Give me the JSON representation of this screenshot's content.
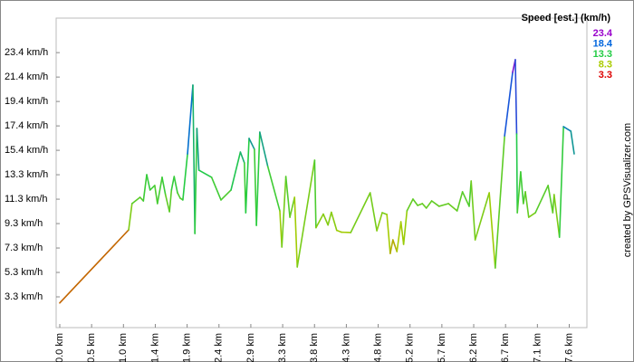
{
  "chart_data": {
    "type": "line",
    "legend_title": "Speed [est.] (km/h)",
    "legend": [
      {
        "value": 23.4,
        "color": "#9900cc"
      },
      {
        "value": 18.4,
        "color": "#0066dd"
      },
      {
        "value": 13.3,
        "color": "#22cc44"
      },
      {
        "value": 8.3,
        "color": "#aacc00"
      },
      {
        "value": 3.3,
        "color": "#dd0000"
      }
    ],
    "credit": "created by GPSVisualizer.com",
    "xlim": [
      -0.054,
      7.88
    ],
    "ylim": [
      0.77,
      26.23
    ],
    "xticks": [
      {
        "value": 0,
        "label": "0.0 km"
      },
      {
        "value": 0.476,
        "label": "0.5 km"
      },
      {
        "value": 0.952,
        "label": "1.0 km"
      },
      {
        "value": 1.428,
        "label": "1.4 km"
      },
      {
        "value": 1.904,
        "label": "1.9 km"
      },
      {
        "value": 2.38,
        "label": "2.4 km"
      },
      {
        "value": 2.856,
        "label": "2.9 km"
      },
      {
        "value": 3.332,
        "label": "3.3 km"
      },
      {
        "value": 3.808,
        "label": "3.8 km"
      },
      {
        "value": 4.284,
        "label": "4.3 km"
      },
      {
        "value": 4.76,
        "label": "4.8 km"
      },
      {
        "value": 5.236,
        "label": "5.2 km"
      },
      {
        "value": 5.712,
        "label": "5.7 km"
      },
      {
        "value": 6.188,
        "label": "6.2 km"
      },
      {
        "value": 6.664,
        "label": "6.7 km"
      },
      {
        "value": 7.14,
        "label": "7.1 km"
      },
      {
        "value": 7.616,
        "label": "7.6 km"
      }
    ],
    "yticks": [
      {
        "value": 3.3,
        "label": "3.3 km/h"
      },
      {
        "value": 5.309,
        "label": "5.3 km/h"
      },
      {
        "value": 7.318,
        "label": "7.3 km/h"
      },
      {
        "value": 9.327,
        "label": "9.3 km/h"
      },
      {
        "value": 11.336,
        "label": "11.3 km/h"
      },
      {
        "value": 13.345,
        "label": "13.3 km/h"
      },
      {
        "value": 15.354,
        "label": "15.4 km/h"
      },
      {
        "value": 17.363,
        "label": "17.4 km/h"
      },
      {
        "value": 19.372,
        "label": "19.4 km/h"
      },
      {
        "value": 21.381,
        "label": "21.4 km/h"
      },
      {
        "value": 23.39,
        "label": "23.4 km/h"
      }
    ],
    "x": [
      0,
      1.03,
      1.08,
      1.2,
      1.25,
      1.3,
      1.35,
      1.42,
      1.46,
      1.53,
      1.58,
      1.64,
      1.67,
      1.71,
      1.76,
      1.8,
      1.84,
      1.91,
      1.99,
      2.02,
      2.05,
      2.08,
      2.27,
      2.41,
      2.56,
      2.7,
      2.76,
      2.78,
      2.83,
      2.91,
      2.94,
      2.99,
      3.11,
      3.29,
      3.32,
      3.38,
      3.44,
      3.51,
      3.55,
      3.81,
      3.83,
      3.94,
      4.01,
      4.06,
      4.14,
      4.21,
      4.35,
      4.64,
      4.74,
      4.82,
      4.89,
      4.94,
      4.98,
      5.04,
      5.1,
      5.14,
      5.19,
      5.28,
      5.35,
      5.42,
      5.48,
      5.56,
      5.67,
      5.81,
      5.94,
      6.02,
      6.12,
      6.15,
      6.21,
      6.42,
      6.51,
      6.65,
      6.77,
      6.81,
      6.83,
      6.84,
      6.89,
      6.93,
      6.96,
      7.01,
      7.11,
      7.3,
      7.37,
      7.39,
      7.47,
      7.53,
      7.64,
      7.69
    ],
    "values": [
      2.8,
      8.81,
      10.97,
      11.49,
      11.19,
      13.35,
      12.09,
      12.46,
      10.97,
      13.13,
      11.71,
      10.3,
      12.09,
      13.2,
      11.86,
      11.42,
      11.27,
      15.06,
      20.72,
      8.51,
      17.15,
      13.72,
      13.13,
      11.27,
      12.09,
      15.21,
      14.32,
      10.22,
      16.33,
      15.44,
      9.18,
      16.85,
      14.02,
      10.37,
      7.4,
      13.2,
      9.85,
      11.49,
      5.76,
      14.54,
      8.99,
      10.11,
      9.21,
      10.26,
      8.77,
      8.62,
      8.59,
      11.86,
      8.74,
      10.22,
      10.08,
      6.87,
      7.99,
      7.02,
      9.48,
      7.62,
      10.37,
      11.34,
      10.82,
      10.97,
      10.6,
      11.19,
      10.75,
      10.97,
      10.37,
      11.94,
      10.75,
      12.83,
      7.99,
      11.86,
      5.68,
      16.55,
      21.77,
      22.81,
      16.7,
      10.22,
      13.58,
      10.97,
      11.94,
      9.85,
      10.22,
      12.46,
      10.22,
      11.71,
      8.21,
      17.3,
      16.93,
      15.06
    ]
  }
}
